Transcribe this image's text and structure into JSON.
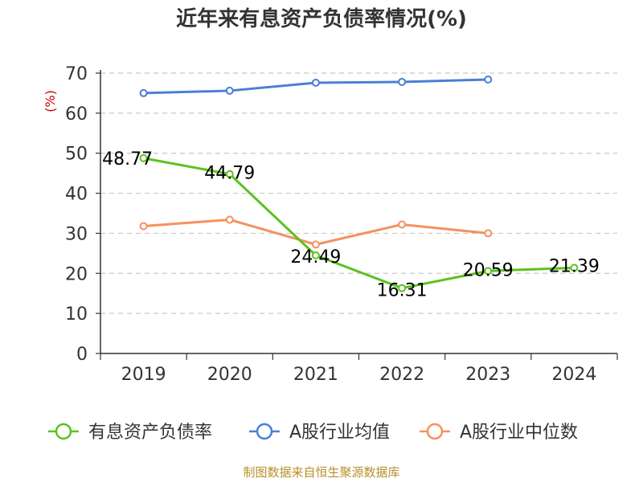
{
  "chart_data": {
    "type": "line",
    "title": "近年来有息资产负债率情况(%)",
    "ylabel": "(%)",
    "xlabel": "",
    "categories": [
      "2019",
      "2020",
      "2021",
      "2022",
      "2023",
      "2024"
    ],
    "ylim": [
      0,
      70
    ],
    "yticks": [
      0,
      10,
      20,
      30,
      40,
      50,
      60,
      70
    ],
    "grid": true,
    "legend_position": "bottom",
    "series": [
      {
        "name": "有息资产负债率",
        "color": "#5bc21f",
        "values": [
          48.77,
          44.79,
          24.49,
          16.31,
          20.59,
          21.39
        ],
        "labels": [
          "48.77",
          "44.79",
          "24.49",
          "16.31",
          "20.59",
          "21.39"
        ]
      },
      {
        "name": "A股行业均值",
        "color": "#4a7fd6",
        "values": [
          65.0,
          65.6,
          67.6,
          67.8,
          68.4,
          null
        ]
      },
      {
        "name": "A股行业中位数",
        "color": "#f4915e",
        "values": [
          31.8,
          33.4,
          27.2,
          32.2,
          30.0,
          null
        ]
      }
    ],
    "source": "制图数据来自恒生聚源数据库"
  }
}
